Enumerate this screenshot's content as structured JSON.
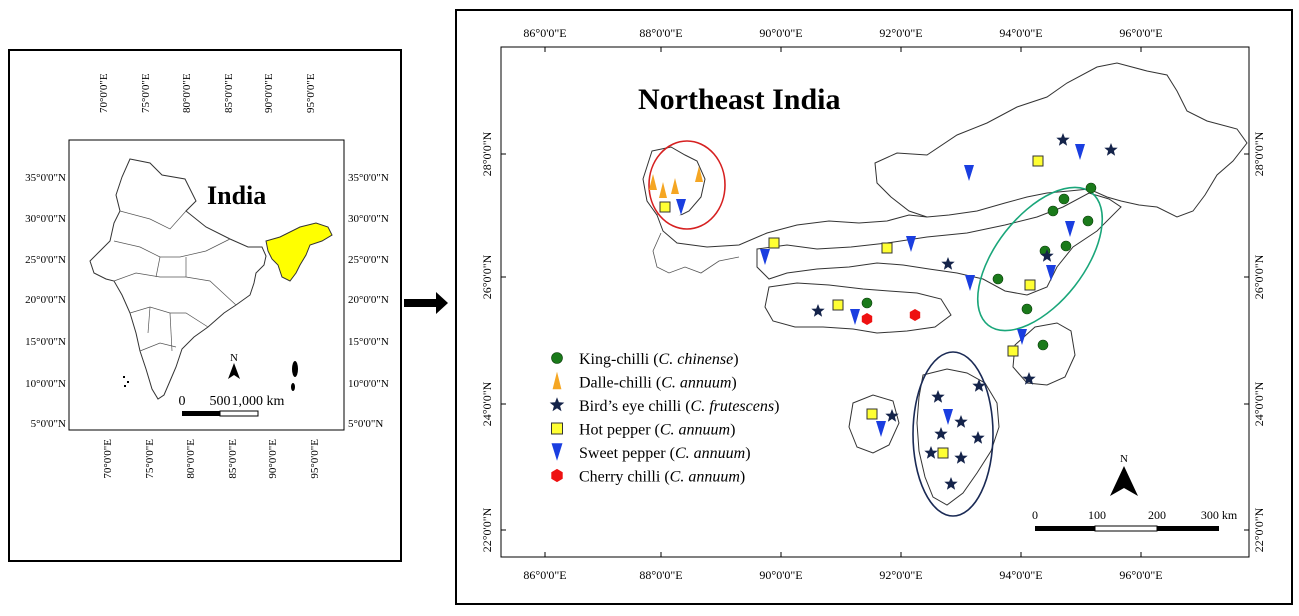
{
  "inset": {
    "title": "India",
    "top_labels": [
      "70°0'0\"E",
      "75°0'0\"E",
      "80°0'0\"E",
      "85°0'0\"E",
      "90°0'0\"E",
      "95°0'0\"E"
    ],
    "bottom_labels": [
      "70°0'0\"E",
      "75°0'0\"E",
      "80°0'0\"E",
      "85°0'0\"E",
      "90°0'0\"E",
      "95°0'0\"E"
    ],
    "left_labels": [
      "35°0'0\"N",
      "30°0'0\"N",
      "25°0'0\"N",
      "20°0'0\"N",
      "15°0'0\"N",
      "10°0'0\"N",
      "5°0'0\"N"
    ],
    "right_labels": [
      "35°0'0\"N",
      "30°0'0\"N",
      "25°0'0\"N",
      "20°0'0\"N",
      "15°0'0\"N",
      "10°0'0\"N",
      "5°0'0\"N"
    ],
    "scale_labels": [
      "0",
      "500",
      "1,000 km"
    ],
    "north": "N",
    "highlight_color": "#ffff00"
  },
  "main": {
    "title": "Northeast India",
    "top_labels": [
      "86°0'0\"E",
      "88°0'0\"E",
      "90°0'0\"E",
      "92°0'0\"E",
      "94°0'0\"E",
      "96°0'0\"E"
    ],
    "bottom_labels": [
      "86°0'0\"E",
      "88°0'0\"E",
      "90°0'0\"E",
      "92°0'0\"E",
      "94°0'0\"E",
      "96°0'0\"E"
    ],
    "left_labels": [
      "28°0'0\"N",
      "26°0'0\"N",
      "24°0'0\"N",
      "22°0'0\"N"
    ],
    "right_labels": [
      "28°0'0\"N",
      "26°0'0\"N",
      "24°0'0\"N",
      "22°0'0\"N"
    ],
    "scale_labels": [
      "0",
      "100",
      "200",
      "300 km"
    ],
    "north": "N",
    "legend": [
      {
        "prefix": "King-chilli (",
        "italic": "C. chinense",
        "suffix": ")",
        "symbol": "circle",
        "color": "#1a7a1a"
      },
      {
        "prefix": "Dalle-chilli (",
        "italic": "C. annuum",
        "suffix": ")",
        "symbol": "cone",
        "color": "#f5a623"
      },
      {
        "prefix": "Bird’s eye chilli (",
        "italic": "C. frutescens",
        "suffix": ")",
        "symbol": "star",
        "color": "#14234a"
      },
      {
        "prefix": "Hot pepper (",
        "italic": "C. annuum",
        "suffix": ")",
        "symbol": "square",
        "color": "#ffff33"
      },
      {
        "prefix": "Sweet pepper (",
        "italic": "C. annuum",
        "suffix": ")",
        "symbol": "triangle",
        "color": "#1a3ee0"
      },
      {
        "prefix": "Cherry chilli (",
        "italic": "C. annuum",
        "suffix": ")",
        "symbol": "hexagon",
        "color": "#ee1111"
      }
    ],
    "ellipse_colors": {
      "sikkim": "#d62020",
      "assam": "#1aa67a",
      "tripura": "#1a2a55"
    }
  }
}
